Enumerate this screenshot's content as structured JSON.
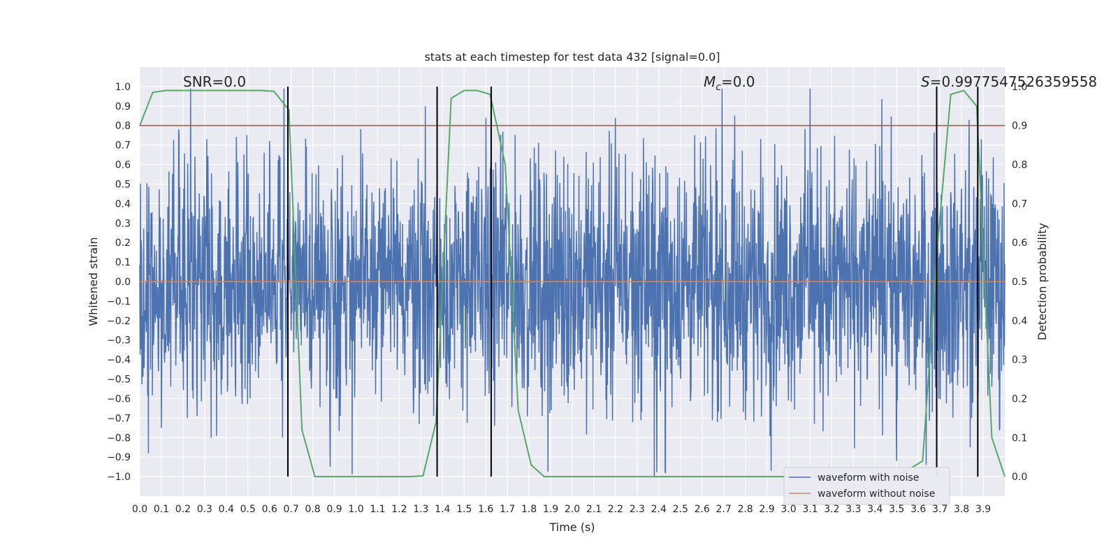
{
  "chart_data": {
    "type": "line",
    "title": "stats at each timestep for test data 432 [signal=0.0]",
    "xlabel": "Time (s)",
    "ylabel": "Whitened strain",
    "y2label": "Detection probability",
    "xlim": [
      0.0,
      4.0
    ],
    "ylim": [
      -1.1,
      1.1
    ],
    "y2lim": [
      -0.05,
      1.05
    ],
    "xticks": [
      "0.0",
      "0.1",
      "0.2",
      "0.3",
      "0.4",
      "0.5",
      "0.6",
      "0.7",
      "0.8",
      "0.9",
      "1.0",
      "1.1",
      "1.2",
      "1.3",
      "1.4",
      "1.5",
      "1.6",
      "1.7",
      "1.8",
      "1.9",
      "2.0",
      "2.1",
      "2.2",
      "2.3",
      "2.4",
      "2.5",
      "2.6",
      "2.7",
      "2.8",
      "2.9",
      "3.0",
      "3.1",
      "3.2",
      "3.3",
      "3.4",
      "3.5",
      "3.6",
      "3.7",
      "3.8",
      "3.9"
    ],
    "yticks": [
      "1.0",
      "0.9",
      "0.8",
      "0.7",
      "0.6",
      "0.5",
      "0.4",
      "0.3",
      "0.2",
      "0.1",
      "0.0",
      "−0.1",
      "−0.2",
      "−0.3",
      "−0.4",
      "−0.5",
      "−0.6",
      "−0.7",
      "−0.8",
      "−0.9",
      "−1.0"
    ],
    "y2ticks": [
      "1.0",
      "0.9",
      "0.8",
      "0.7",
      "0.6",
      "0.5",
      "0.4",
      "0.3",
      "0.2",
      "0.1",
      "0.0"
    ],
    "grid": true,
    "legend_position": "bottom-right",
    "annotations": {
      "snr": "SNR=0.0",
      "mc_symbol": "M",
      "mc_sub": "c",
      "mc_value": "=0.0",
      "s_symbol": "S",
      "s_value": "=0.9977547526359558"
    },
    "series": [
      {
        "name": "waveform with noise",
        "color": "#4c72b0",
        "axis": "left",
        "note_kind": "dense_noise",
        "amplitude_envelope": 0.5,
        "peak_samples": [
          {
            "x": 0.04,
            "y": -0.88
          },
          {
            "x": 0.1,
            "y": 0.74
          },
          {
            "x": 0.1,
            "y": -0.75
          },
          {
            "x": 0.18,
            "y": 0.78
          },
          {
            "x": 0.22,
            "y": -0.7
          },
          {
            "x": 0.31,
            "y": 0.73
          },
          {
            "x": 0.33,
            "y": -0.8
          },
          {
            "x": 0.6,
            "y": 0.72
          },
          {
            "x": 0.66,
            "y": -0.8
          },
          {
            "x": 0.88,
            "y": -0.95
          },
          {
            "x": 1.32,
            "y": 0.9
          },
          {
            "x": 1.6,
            "y": 0.84
          },
          {
            "x": 2.2,
            "y": 0.84
          },
          {
            "x": 2.38,
            "y": -1.0
          },
          {
            "x": 2.43,
            "y": -0.97
          },
          {
            "x": 2.92,
            "y": -0.97
          },
          {
            "x": 3.1,
            "y": 0.99
          },
          {
            "x": 3.5,
            "y": -0.92
          },
          {
            "x": 3.84,
            "y": -0.85
          }
        ]
      },
      {
        "name": "waveform without noise",
        "color": "#dd8452",
        "axis": "left",
        "x": [
          0.0,
          4.0
        ],
        "y": [
          0.0,
          0.0
        ]
      },
      {
        "name": "",
        "color": "#55a868",
        "axis": "right",
        "x": [
          0.0,
          0.06,
          0.12,
          0.19,
          0.25,
          0.31,
          0.37,
          0.44,
          0.5,
          0.56,
          0.62,
          0.69,
          0.75,
          0.81,
          0.87,
          0.94,
          1.0,
          1.06,
          1.12,
          1.19,
          1.25,
          1.31,
          1.37,
          1.44,
          1.5,
          1.56,
          1.62,
          1.69,
          1.75,
          1.81,
          1.87,
          1.94,
          2.0,
          2.5,
          3.0,
          3.5,
          3.62,
          3.69,
          3.75,
          3.81,
          3.87,
          3.94,
          4.0
        ],
        "y": [
          0.9,
          0.985,
          0.99,
          0.99,
          0.99,
          0.99,
          0.99,
          0.99,
          0.99,
          0.99,
          0.988,
          0.94,
          0.12,
          0.0,
          0.0,
          0.0,
          0.0,
          0.0,
          0.0,
          0.0,
          0.0,
          0.002,
          0.14,
          0.97,
          0.99,
          0.99,
          0.98,
          0.8,
          0.17,
          0.03,
          0.0,
          0.0,
          0.0,
          0.0,
          0.0,
          0.0,
          0.04,
          0.6,
          0.98,
          0.99,
          0.95,
          0.1,
          0.0
        ]
      },
      {
        "name": "",
        "color": "#c44e52",
        "axis": "right",
        "kind": "hline",
        "y": 0.9
      }
    ],
    "vlines": [
      0.685,
      1.375,
      1.625,
      3.685,
      3.875
    ],
    "vline_color": "#000000"
  }
}
